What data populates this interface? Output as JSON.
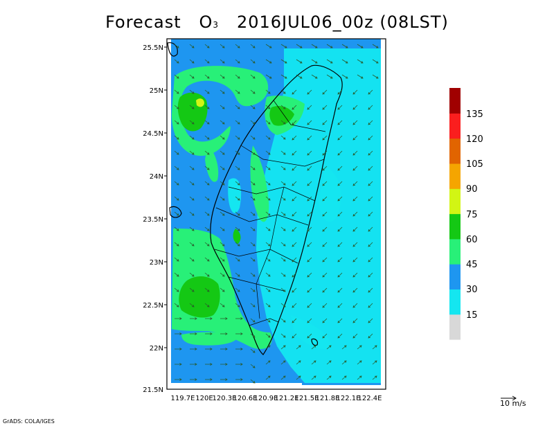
{
  "title": {
    "prefix": "Forecast",
    "species": "O",
    "subscript": "3",
    "date": "2016JUL06_00z",
    "local": "(08LST)"
  },
  "map": {
    "lat_labels": [
      "25.5N",
      "25N",
      "24.5N",
      "24N",
      "23.5N",
      "23N",
      "22.5N",
      "22N",
      "21.5N"
    ],
    "lon_labels": [
      "119.7E",
      "120E",
      "120.3E",
      "120.6E",
      "120.9E",
      "121.2E",
      "121.5E",
      "121.8E",
      "122.1E",
      "122.4E"
    ],
    "lon_labels_display": [
      "119.7E",
      "120E",
      "120.3E",
      "120.6E",
      "120.9E",
      "121.2E",
      "121.5E",
      "121.8E",
      "122.1E",
      "122.4E"
    ]
  },
  "colorbar": {
    "labels": [
      "15",
      "30",
      "45",
      "60",
      "75",
      "90",
      "105",
      "120",
      "135"
    ],
    "colors": [
      "#d8d8d8",
      "#14e6f0",
      "#1e96f0",
      "#28f078",
      "#14c814",
      "#d2f514",
      "#f5a500",
      "#e16400",
      "#fa1e1e",
      "#a00000"
    ]
  },
  "vector_key": {
    "value": "10",
    "unit": "m/s"
  },
  "credit": "GrADS: COLA/IGES"
}
